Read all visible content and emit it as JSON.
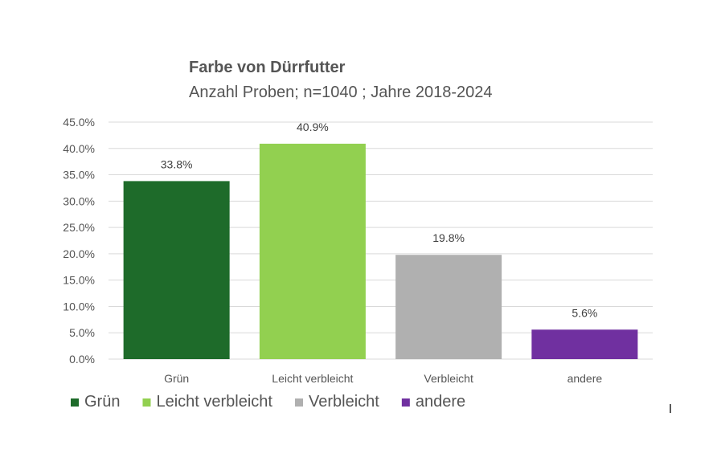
{
  "chart_data": {
    "type": "bar",
    "title": "Farbe von Dürrfutter",
    "subtitle": "Anzahl Proben; n=1040 ; Jahre 2018-2024",
    "categories": [
      "Grün",
      "Leicht verbleicht",
      "Verbleicht",
      "andere"
    ],
    "values": [
      33.8,
      40.9,
      19.8,
      5.6
    ],
    "data_labels": [
      "33.8%",
      "40.9%",
      "19.8%",
      "5.6%"
    ],
    "colors": [
      "#1e6b2a",
      "#92d050",
      "#b0b0b0",
      "#7030a0"
    ],
    "ylim": [
      0,
      45
    ],
    "yticks": [
      0,
      5,
      10,
      15,
      20,
      25,
      30,
      35,
      40,
      45
    ],
    "ytick_labels": [
      "0.0%",
      "5.0%",
      "10.0%",
      "15.0%",
      "20.0%",
      "25.0%",
      "30.0%",
      "35.0%",
      "40.0%",
      "45.0%"
    ],
    "xlabel": "",
    "ylabel": "",
    "grid": true,
    "legend_position": "bottom-left",
    "legend": [
      "Grün",
      "Leicht verbleicht",
      "Verbleicht",
      "andere"
    ]
  }
}
